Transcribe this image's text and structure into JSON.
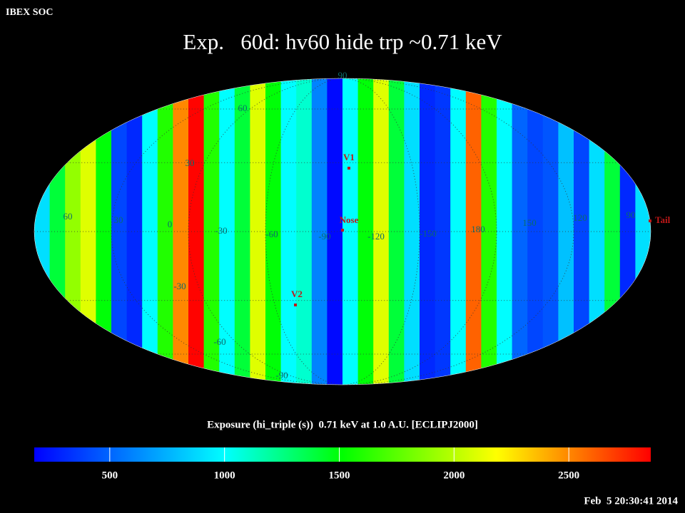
{
  "chart_data": {
    "type": "map",
    "header": "IBEX SOC",
    "title": "Exp.   60d: hv60 hide trp ~0.71 keV",
    "colorbar_label": "Exposure (hi_triple (s))  0.71 keV at 1.0 A.U. [ECLIPJ2000]",
    "timestamp": "Feb  5 20:30:41 2014",
    "columns": [
      900,
      1400,
      1900,
      2100,
      1500,
      400,
      300,
      1000,
      1600,
      2500,
      2850,
      1600,
      1000,
      1400,
      2100,
      1500,
      1000,
      1100,
      600,
      200,
      1000,
      1500,
      2100,
      1400,
      900,
      300,
      350,
      1000,
      2600,
      1600,
      1000,
      500,
      400,
      450,
      800,
      400,
      900,
      1400,
      300,
      900
    ],
    "clim": [
      171,
      2857
    ],
    "cticks": [
      500,
      1000,
      1500,
      2000,
      2500
    ],
    "lon_labels": [
      "60",
      "30",
      "0",
      "-30",
      "-60",
      "-90",
      "-120",
      "-150",
      "180",
      "150",
      "120",
      "90"
    ],
    "lat_labels": [
      "90",
      "60",
      "30",
      "-30",
      "-60",
      "-90"
    ],
    "markers": [
      {
        "label": "V1"
      },
      {
        "label": "Nose"
      },
      {
        "label": "V2"
      },
      {
        "label": "Tail"
      }
    ]
  }
}
